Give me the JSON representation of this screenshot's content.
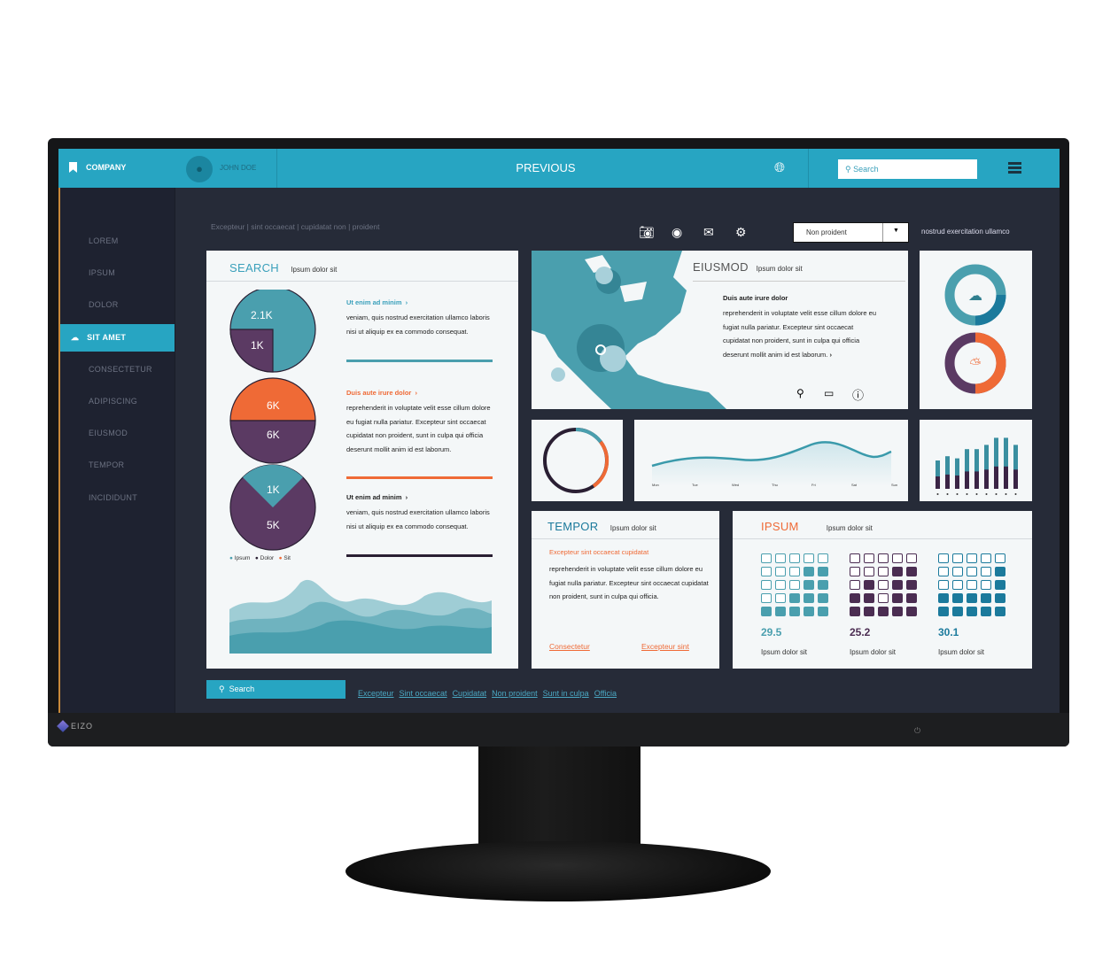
{
  "topbar": {
    "company": "COMPANY",
    "user": "JOHN DOE",
    "title": "PREVIOUS",
    "search_placeholder": "Search"
  },
  "sidebar": {
    "items": [
      {
        "label": "LOREM"
      },
      {
        "label": "IPSUM"
      },
      {
        "label": "DOLOR"
      },
      {
        "label": "SIT AMET",
        "active": true
      },
      {
        "label": "CONSECTETUR"
      },
      {
        "label": "ADIPISCING"
      },
      {
        "label": "EIUSMOD"
      },
      {
        "label": "TEMPOR"
      },
      {
        "label": "INCIDIDUNT"
      }
    ]
  },
  "breadcrumb": "Excepteur | sint occaecat | cupidatat non | proident",
  "toolbar": {
    "icons": [
      "camera-icon",
      "record-icon",
      "mail-icon",
      "gear-icon"
    ],
    "dropdown_value": "Non proident",
    "right_text": "nostrud exercitation ullamco"
  },
  "search_card": {
    "title": "SEARCH",
    "subtitle": "Ipsum dolor sit",
    "pies": [
      {
        "labels": [
          "2.1K",
          "1K"
        ]
      },
      {
        "labels": [
          "6K",
          "6K"
        ]
      },
      {
        "labels": [
          "1K",
          "5K"
        ]
      }
    ],
    "legend": [
      "Ipsum",
      "Dolor",
      "Sit"
    ],
    "blocks": [
      {
        "title": "Ut enim ad minim",
        "text": "veniam, quis nostrud exercitation ullamco laboris nisi ut aliquip ex ea commodo consequat."
      },
      {
        "title": "Duis aute irure dolor",
        "text": "reprehenderit in voluptate velit esse cillum dolore eu fugiat nulla pariatur. Excepteur sint occaecat cupidatat non proident, sunt in culpa qui officia deserunt mollit anim id est laborum."
      },
      {
        "title": "Ut enim ad minim",
        "text": "veniam, quis nostrud exercitation ullamco laboris nisi ut aliquip ex ea commodo consequat."
      }
    ]
  },
  "map_card": {
    "title": "EIUSMOD",
    "subtitle": "Ipsum dolor sit",
    "heading": "Duis aute irure dolor",
    "text": "reprehenderit in voluptate velit esse cillum dolore eu fugiat nulla pariatur. Excepteur sint occaecat cupidatat non proident, sunt in culpa qui officia deserunt mollit anim id est laborum."
  },
  "line_chart": {
    "days": [
      "Mon",
      "Tue",
      "Wed",
      "Thu",
      "Fri",
      "Sat",
      "Sun"
    ]
  },
  "tempor_card": {
    "title": "TEMPOR",
    "subtitle": "Ipsum dolor sit",
    "heading": "Excepteur sint occaecat cupidatat",
    "text": "reprehenderit in voluptate velit esse cillum dolore eu fugiat nulla pariatur. Excepteur sint occaecat cupidatat non proident, sunt in culpa qui officia.",
    "link1": "Consectetur",
    "link2": "Excepteur sint"
  },
  "ipsum_card": {
    "title": "IPSUM",
    "subtitle": "Ipsum dolor sit",
    "grids": [
      {
        "value": "29.5",
        "label": "Ipsum dolor sit",
        "color": "#4a9fae",
        "pattern": [
          "00000",
          "00011",
          "00011",
          "00111",
          "11111"
        ]
      },
      {
        "value": "25.2",
        "label": "Ipsum dolor sit",
        "color": "#4b2d52",
        "pattern": [
          "00000",
          "00011",
          "01011",
          "11011",
          "11111"
        ]
      },
      {
        "value": "30.1",
        "label": "Ipsum dolor sit",
        "color": "#1b7a9c",
        "pattern": [
          "00000",
          "00001",
          "00001",
          "11111",
          "11111"
        ]
      }
    ]
  },
  "bottom": {
    "search_label": "Search",
    "links": [
      "Excepteur",
      "Sint occaecat",
      "Cupidatat",
      "Non proident",
      "Sunt in culpa",
      "Officia"
    ]
  },
  "brand": "EIZO",
  "colors": {
    "accent": "#27a5c2",
    "teal": "#4a9fae",
    "purple": "#5b3a63",
    "orange": "#ef6a36"
  }
}
